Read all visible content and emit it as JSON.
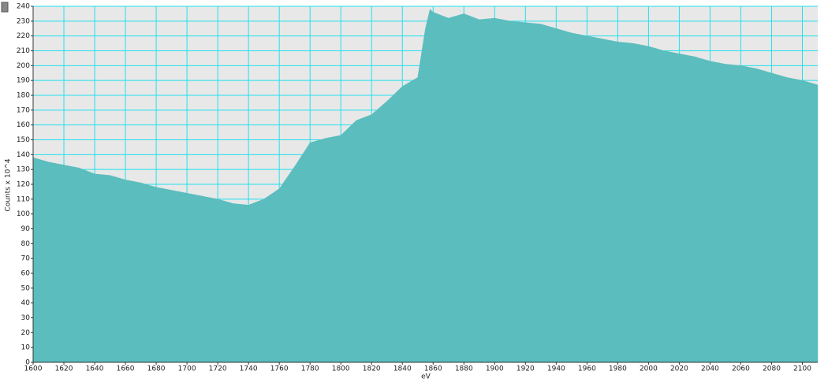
{
  "chart_data": {
    "type": "area",
    "xlabel": "eV",
    "ylabel": "Counts x 10^4",
    "x": [
      1600,
      1610,
      1620,
      1630,
      1640,
      1650,
      1660,
      1670,
      1680,
      1690,
      1700,
      1710,
      1720,
      1730,
      1740,
      1750,
      1760,
      1770,
      1780,
      1790,
      1800,
      1810,
      1820,
      1830,
      1840,
      1850,
      1855,
      1858,
      1860,
      1870,
      1880,
      1890,
      1900,
      1910,
      1920,
      1930,
      1940,
      1950,
      1960,
      1970,
      1980,
      1990,
      2000,
      2010,
      2020,
      2030,
      2040,
      2050,
      2060,
      2070,
      2080,
      2090,
      2100,
      2110
    ],
    "series": [
      {
        "color": "#5bbdbd",
        "values": [
          138,
          135,
          133,
          131,
          127,
          126,
          123,
          121,
          118,
          116,
          114,
          112,
          110,
          107,
          106,
          110,
          117,
          132,
          148,
          151,
          153,
          163,
          167,
          176,
          186,
          192,
          225,
          238,
          236,
          232,
          235,
          231,
          232,
          230,
          229,
          228,
          225,
          222,
          220,
          218,
          216,
          215,
          213,
          210,
          208,
          206,
          203,
          201,
          200,
          198,
          195,
          192,
          190,
          187
        ]
      }
    ],
    "xlim": [
      1600,
      2110
    ],
    "xticks": [
      1600,
      1620,
      1640,
      1660,
      1680,
      1700,
      1720,
      1740,
      1760,
      1780,
      1800,
      1820,
      1840,
      1860,
      1880,
      1900,
      1920,
      1940,
      1960,
      1980,
      2000,
      2020,
      2040,
      2060,
      2080,
      2100
    ],
    "ylim": [
      0,
      240
    ],
    "yticks": [
      0,
      10,
      20,
      30,
      40,
      50,
      60,
      70,
      80,
      90,
      100,
      110,
      120,
      130,
      140,
      150,
      160,
      170,
      180,
      190,
      200,
      210,
      220,
      230,
      240
    ],
    "grid": true,
    "grid_color": "#22e0ee",
    "background": "#e8e8e8"
  }
}
